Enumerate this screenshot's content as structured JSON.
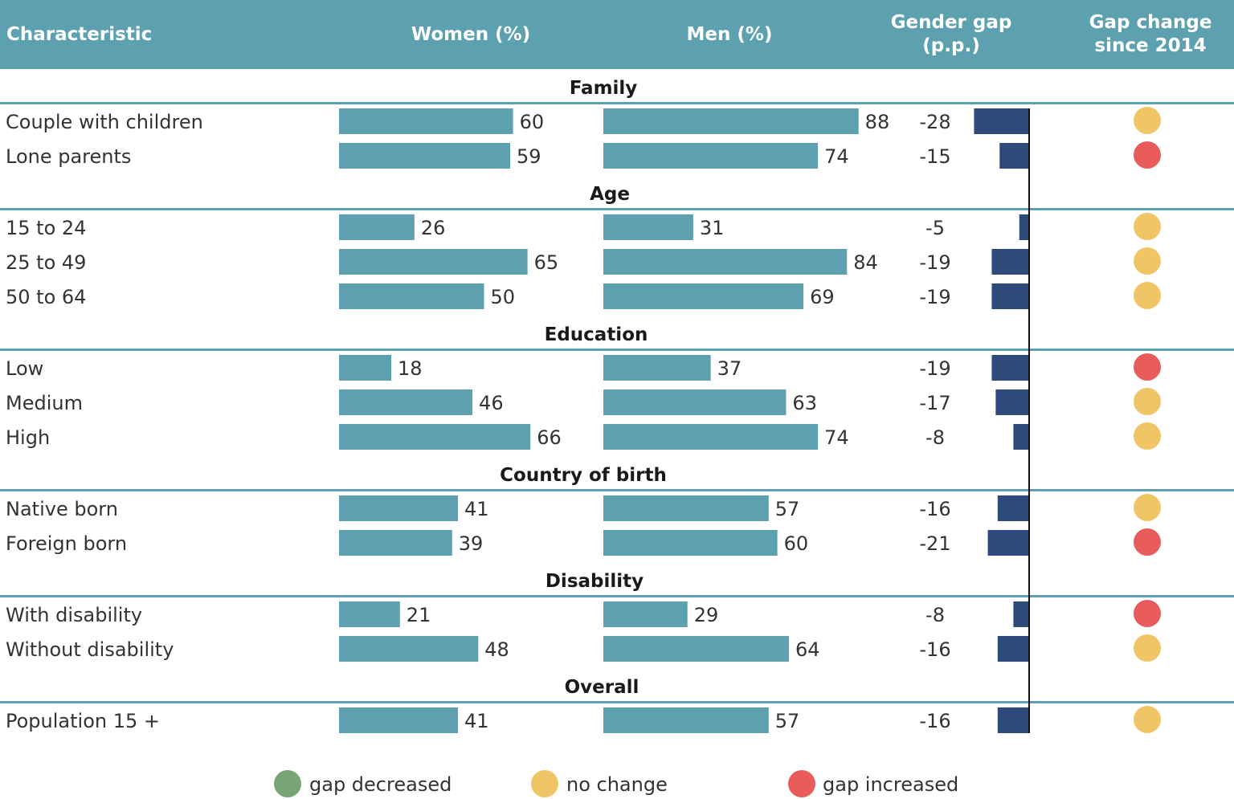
{
  "colors": {
    "header_bg": "#5da0b0",
    "bar": "#5da0b0",
    "gap_bar": "#2e4a7a",
    "rule": "#5da0b0",
    "decreased": "#77a576",
    "no_change": "#efc565",
    "increased": "#e85c5c"
  },
  "chart_data": {
    "type": "table",
    "columns": {
      "characteristic": "Characteristic",
      "women": "Women (%)",
      "men": "Men (%)",
      "gap_line1": "Gender gap",
      "gap_line2": "(p.p.)",
      "change_line1": "Gap change",
      "change_line2": "since 2014"
    },
    "value_range": [
      0,
      100
    ],
    "gap_range": [
      -30,
      0
    ],
    "sections": [
      {
        "title": "Family",
        "rows": [
          {
            "label": "Couple with children",
            "women": 60,
            "men": 88,
            "gap": -28,
            "change": "no_change"
          },
          {
            "label": "Lone parents",
            "women": 59,
            "men": 74,
            "gap": -15,
            "change": "increased"
          }
        ]
      },
      {
        "title": "Age",
        "rows": [
          {
            "label": "15 to 24",
            "women": 26,
            "men": 31,
            "gap": -5,
            "change": "no_change"
          },
          {
            "label": "25 to 49",
            "women": 65,
            "men": 84,
            "gap": -19,
            "change": "no_change"
          },
          {
            "label": "50 to 64",
            "women": 50,
            "men": 69,
            "gap": -19,
            "change": "no_change"
          }
        ]
      },
      {
        "title": "Education",
        "rows": [
          {
            "label": "Low",
            "women": 18,
            "men": 37,
            "gap": -19,
            "change": "increased"
          },
          {
            "label": "Medium",
            "women": 46,
            "men": 63,
            "gap": -17,
            "change": "no_change"
          },
          {
            "label": "High",
            "women": 66,
            "men": 74,
            "gap": -8,
            "change": "no_change"
          }
        ]
      },
      {
        "title": "Country of birth",
        "rows": [
          {
            "label": "Native born",
            "women": 41,
            "men": 57,
            "gap": -16,
            "change": "no_change"
          },
          {
            "label": "Foreign born",
            "women": 39,
            "men": 60,
            "gap": -21,
            "change": "increased"
          }
        ]
      },
      {
        "title": "Disability",
        "rows": [
          {
            "label": "With disability",
            "women": 21,
            "men": 29,
            "gap": -8,
            "change": "increased"
          },
          {
            "label": "Without disability",
            "women": 48,
            "men": 64,
            "gap": -16,
            "change": "no_change"
          }
        ]
      },
      {
        "title": "Overall",
        "rows": [
          {
            "label": "Population 15 +",
            "women": 41,
            "men": 57,
            "gap": -16,
            "change": "no_change"
          }
        ]
      }
    ],
    "legend": [
      {
        "key": "decreased",
        "label": "gap decreased"
      },
      {
        "key": "no_change",
        "label": "no change"
      },
      {
        "key": "increased",
        "label": "gap increased"
      }
    ]
  }
}
